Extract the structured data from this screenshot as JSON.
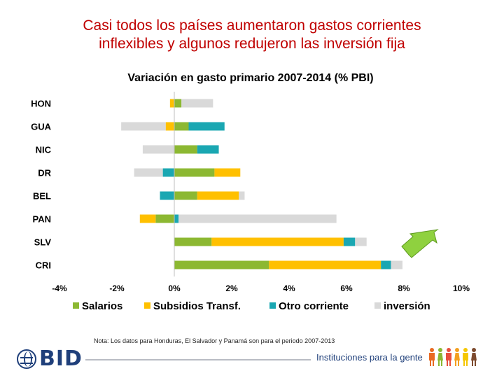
{
  "slide": {
    "title_line1": "Casi todos los países aumentaron gastos corrientes",
    "title_line2": "inflexibles y algunos redujeron las inversión fija"
  },
  "chart_data": {
    "type": "bar",
    "orientation": "horizontal",
    "stacked": true,
    "title": "Variación en gasto primario 2007-2014 (% PBI)",
    "categories": [
      "HON",
      "GUA",
      "NIC",
      "DR",
      "BEL",
      "PAN",
      "SLV",
      "CRI"
    ],
    "series": [
      {
        "name": "Salarios",
        "color": "#8cb832",
        "values": [
          0.25,
          0.5,
          0.8,
          1.4,
          0.8,
          -0.65,
          1.3,
          3.3
        ]
      },
      {
        "name": "Subsidios Transf.",
        "color": "#ffc000",
        "values": [
          -0.15,
          -0.3,
          0,
          0.9,
          1.45,
          -0.55,
          4.6,
          3.9
        ]
      },
      {
        "name": "Otro corriente",
        "color": "#1aa7b2",
        "values": [
          0,
          1.25,
          0.75,
          -0.4,
          -0.5,
          0.15,
          0.4,
          0.35
        ]
      },
      {
        "name": "inversión",
        "color": "#d9d9d9",
        "values": [
          1.1,
          -1.55,
          -1.1,
          -1.0,
          0.2,
          5.5,
          0.4,
          0.4
        ]
      }
    ],
    "x_tick_labels": [
      "-4%",
      "-2%",
      "0%",
      "2%",
      "4%",
      "6%",
      "8%",
      "10%"
    ],
    "xlim": [
      -4,
      10
    ],
    "legend_position": "bottom",
    "grid": false
  },
  "note": "Nota: Los datos para Honduras, El Salvador y Panamá son para el periodo 2007-2013",
  "footer": {
    "logo_text": "BID",
    "tagline": "Instituciones para la gente",
    "logo_icon": "globe-icon",
    "arrow_icon": "arrow-icon",
    "people_icon": "people-icon",
    "people_colors": [
      "#e96a22",
      "#8cb832",
      "#e84e3c",
      "#f3a020",
      "#f5c700",
      "#7d4a2e"
    ]
  }
}
